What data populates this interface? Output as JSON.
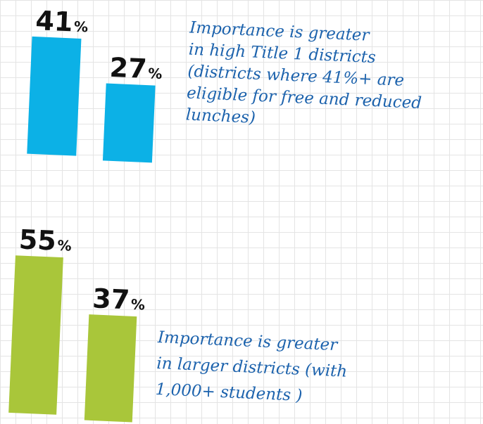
{
  "chart_data": [
    {
      "type": "bar",
      "categories": [
        null,
        null
      ],
      "values": [
        41,
        27
      ],
      "value_labels": [
        "41%",
        "27%"
      ],
      "color": "#0cb1e6",
      "annotation": [
        "Importance is greater",
        "in high Title 1 districts",
        "(districts where 41%+ are",
        "eligible for free and reduced",
        "lunches)"
      ]
    },
    {
      "type": "bar",
      "categories": [
        null,
        null
      ],
      "values": [
        55,
        37
      ],
      "value_labels": [
        "55%",
        "37%"
      ],
      "color": "#a9c63a",
      "annotation": [
        "Importance is greater",
        "in larger districts (with",
        "1,000+ students )"
      ]
    }
  ]
}
